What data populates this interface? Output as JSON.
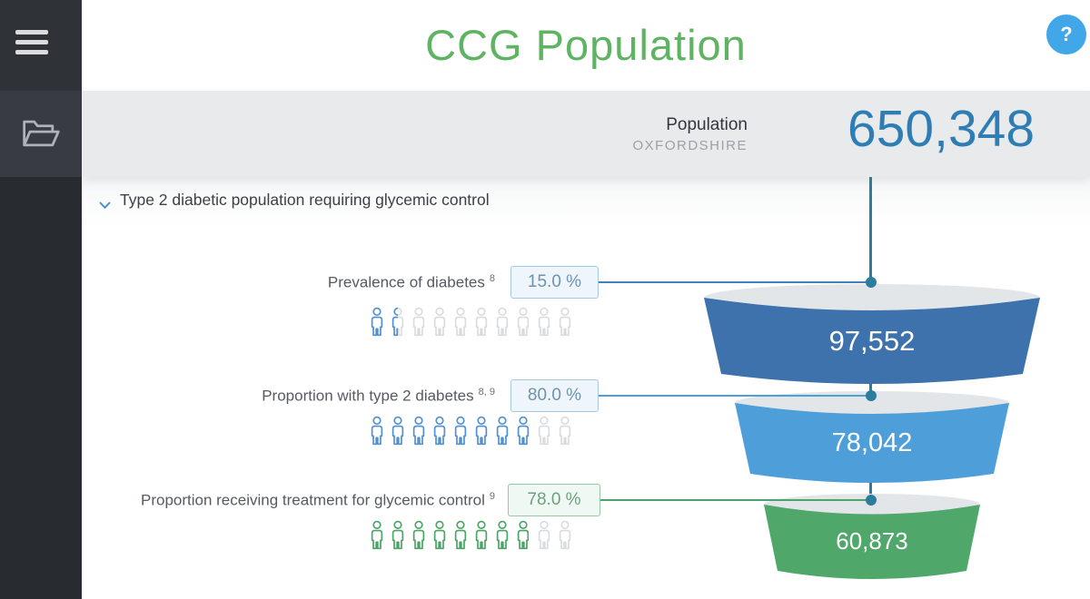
{
  "app": {
    "title": "CCG Population"
  },
  "help": {
    "label": "?"
  },
  "population": {
    "label": "Population",
    "region": "OXFORDSHIRE",
    "value": "650,348"
  },
  "section": {
    "title": "Type 2 diabetic population requiring glycemic control"
  },
  "rows": [
    {
      "label": "Prevalence of diabetes",
      "refs": "8",
      "input_value": "15.0 %",
      "percent": 15,
      "result": "97,552"
    },
    {
      "label": "Proportion with type 2 diabetes",
      "refs": "8, 9",
      "input_value": "80.0 %",
      "percent": 80,
      "result": "78,042"
    },
    {
      "label": "Proportion receiving treatment for glycemic control",
      "refs": "9",
      "input_value": "78.0 %",
      "percent": 78,
      "result": "60,873"
    }
  ],
  "colors": {
    "title_green": "#5fb463",
    "population_blue": "#2e7eb5",
    "help_blue": "#41a7e8",
    "flow_teal": "#2b7c9d",
    "funnel_segment_1": "#3d72ad",
    "funnel_segment_2": "#4e9ed9",
    "funnel_segment_3": "#4fa76a",
    "pictogram_blue": "#5191d1",
    "pictogram_green": "#4aa566",
    "pictogram_gray": "#d9dcdf"
  }
}
